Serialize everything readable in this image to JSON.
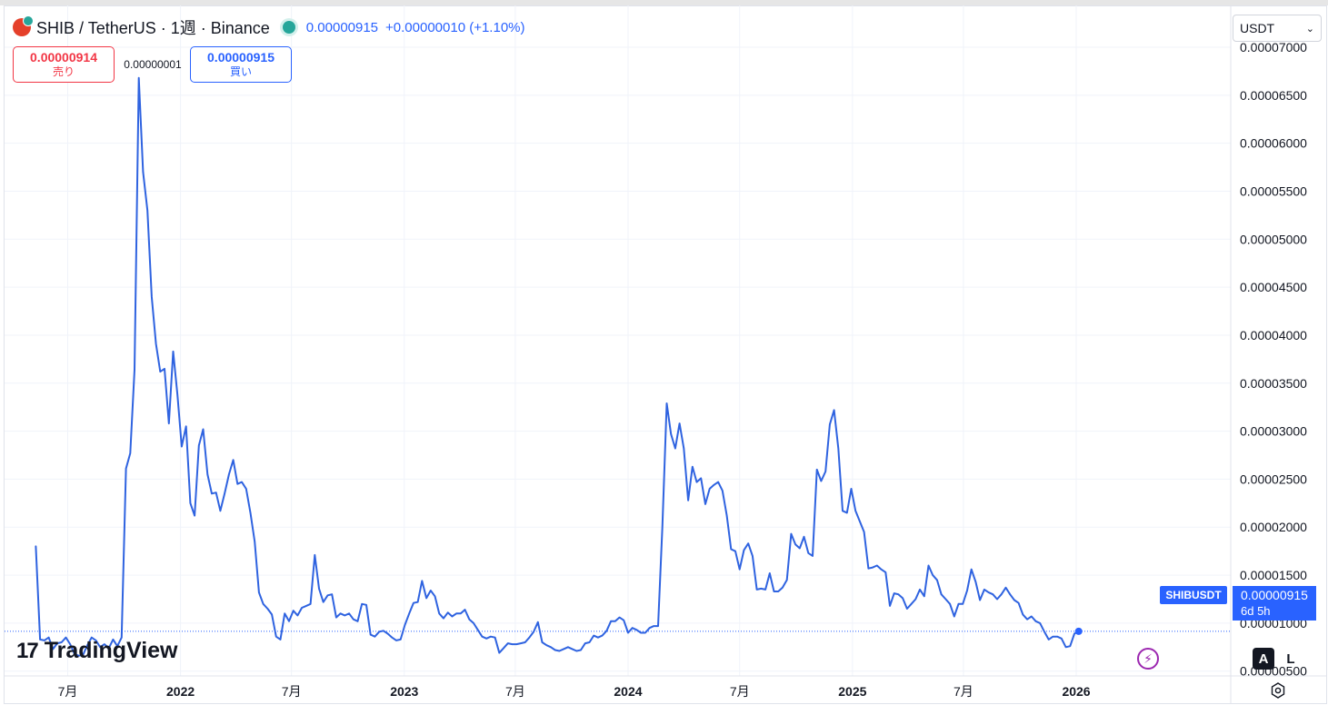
{
  "header": {
    "symbol": "SHIB / TetherUS · 1週 · Binance",
    "last_price": "0.00000915",
    "change": "+0.00000010 (+1.10%)"
  },
  "trade": {
    "sell_price": "0.00000914",
    "sell_label": "売り",
    "spread": "0.00000001",
    "buy_price": "0.00000915",
    "buy_label": "買い"
  },
  "currency_select": {
    "value": "USDT"
  },
  "logo": {
    "mark": "17",
    "text": "TradingView"
  },
  "price_scale_buttons": {
    "auto": "A",
    "log": "L"
  },
  "current_price_tag": {
    "symbol": "SHIBUSDT",
    "price": "0.00000915",
    "countdown": "6d 5h"
  },
  "colors": {
    "line": "#2f63e0",
    "grid": "#f0f3fa",
    "accent": "#2962ff",
    "sell": "#f23645",
    "status": "#26a69a"
  },
  "icons": [
    "coin-icon",
    "status-dot-icon",
    "chevron-down-icon",
    "bolt-icon",
    "settings-icon",
    "tradingview-logo-icon"
  ],
  "chart_data": {
    "type": "line",
    "title": "",
    "xlabel": "",
    "ylabel": "",
    "y_tick_labels": [
      "0.00007000",
      "0.00006500",
      "0.00006000",
      "0.00005500",
      "0.00005000",
      "0.00004500",
      "0.00004000",
      "0.00003500",
      "0.00003000",
      "0.00002500",
      "0.00002000",
      "0.00001500",
      "0.00001000",
      "0.00000500"
    ],
    "y_ticks": [
      7e-05,
      6.5e-05,
      6e-05,
      5.5e-05,
      5e-05,
      4.5e-05,
      4e-05,
      3.5e-05,
      3e-05,
      2.5e-05,
      2e-05,
      1.5e-05,
      1e-05,
      5e-06
    ],
    "ylim": [
      4.5e-06,
      7e-05
    ],
    "x_tick_labels": [
      "7月",
      "2022",
      "7月",
      "2023",
      "7月",
      "2024",
      "7月",
      "2025",
      "7月",
      "2026"
    ],
    "x_ticks": [
      "2021-07-01",
      "2022-01-01",
      "2022-07-01",
      "2023-01-01",
      "2023-07-01",
      "2024-01-01",
      "2024-07-01",
      "2025-01-01",
      "2025-07-01",
      "2026-01-01"
    ],
    "xlim": [
      "2021-03-20",
      "2026-09-10"
    ],
    "grid": true,
    "last_value": 9.15e-06,
    "series": [
      {
        "values": [
          [
            "2021-05-10",
            1.8e-05
          ],
          [
            "2021-05-17",
            8.3e-06
          ],
          [
            "2021-05-24",
            8.2e-06
          ],
          [
            "2021-05-31",
            8.5e-06
          ],
          [
            "2021-06-07",
            7.3e-06
          ],
          [
            "2021-06-14",
            7.9e-06
          ],
          [
            "2021-06-21",
            8e-06
          ],
          [
            "2021-06-28",
            8.5e-06
          ],
          [
            "2021-07-05",
            7.8e-06
          ],
          [
            "2021-07-12",
            6.8e-06
          ],
          [
            "2021-07-19",
            6.6e-06
          ],
          [
            "2021-07-26",
            6.7e-06
          ],
          [
            "2021-08-02",
            7.7e-06
          ],
          [
            "2021-08-09",
            8.5e-06
          ],
          [
            "2021-08-16",
            8.2e-06
          ],
          [
            "2021-08-23",
            7.5e-06
          ],
          [
            "2021-08-30",
            7.8e-06
          ],
          [
            "2021-09-06",
            7.4e-06
          ],
          [
            "2021-09-13",
            8.3e-06
          ],
          [
            "2021-09-20",
            7.6e-06
          ],
          [
            "2021-09-27",
            8.5e-06
          ],
          [
            "2021-10-04",
            2.61e-05
          ],
          [
            "2021-10-11",
            2.77e-05
          ],
          [
            "2021-10-18",
            3.64e-05
          ],
          [
            "2021-10-25",
            6.68e-05
          ],
          [
            "2021-11-01",
            5.7e-05
          ],
          [
            "2021-11-08",
            5.3e-05
          ],
          [
            "2021-11-15",
            4.4e-05
          ],
          [
            "2021-11-22",
            3.91e-05
          ],
          [
            "2021-11-29",
            3.62e-05
          ],
          [
            "2021-12-06",
            3.65e-05
          ],
          [
            "2021-12-13",
            3.08e-05
          ],
          [
            "2021-12-20",
            3.83e-05
          ],
          [
            "2021-12-27",
            3.38e-05
          ],
          [
            "2022-01-03",
            2.84e-05
          ],
          [
            "2022-01-10",
            3.05e-05
          ],
          [
            "2022-01-17",
            2.25e-05
          ],
          [
            "2022-01-24",
            2.12e-05
          ],
          [
            "2022-01-31",
            2.85e-05
          ],
          [
            "2022-02-07",
            3.02e-05
          ],
          [
            "2022-02-14",
            2.55e-05
          ],
          [
            "2022-02-21",
            2.35e-05
          ],
          [
            "2022-02-28",
            2.36e-05
          ],
          [
            "2022-03-07",
            2.17e-05
          ],
          [
            "2022-03-14",
            2.35e-05
          ],
          [
            "2022-03-21",
            2.55e-05
          ],
          [
            "2022-03-28",
            2.7e-05
          ],
          [
            "2022-04-04",
            2.45e-05
          ],
          [
            "2022-04-11",
            2.47e-05
          ],
          [
            "2022-04-18",
            2.4e-05
          ],
          [
            "2022-04-25",
            2.15e-05
          ],
          [
            "2022-05-02",
            1.85e-05
          ],
          [
            "2022-05-09",
            1.32e-05
          ],
          [
            "2022-05-16",
            1.2e-05
          ],
          [
            "2022-05-23",
            1.15e-05
          ],
          [
            "2022-05-30",
            1.09e-05
          ],
          [
            "2022-06-06",
            8.6e-06
          ],
          [
            "2022-06-13",
            8.3e-06
          ],
          [
            "2022-06-20",
            1.1e-05
          ],
          [
            "2022-06-27",
            1.02e-05
          ],
          [
            "2022-07-04",
            1.13e-05
          ],
          [
            "2022-07-11",
            1.08e-05
          ],
          [
            "2022-07-18",
            1.16e-05
          ],
          [
            "2022-07-25",
            1.18e-05
          ],
          [
            "2022-08-01",
            1.2e-05
          ],
          [
            "2022-08-08",
            1.71e-05
          ],
          [
            "2022-08-15",
            1.36e-05
          ],
          [
            "2022-08-22",
            1.22e-05
          ],
          [
            "2022-08-29",
            1.29e-05
          ],
          [
            "2022-09-05",
            1.3e-05
          ],
          [
            "2022-09-12",
            1.06e-05
          ],
          [
            "2022-09-19",
            1.1e-05
          ],
          [
            "2022-09-26",
            1.08e-05
          ],
          [
            "2022-10-03",
            1.1e-05
          ],
          [
            "2022-10-10",
            1.04e-05
          ],
          [
            "2022-10-17",
            1.02e-05
          ],
          [
            "2022-10-24",
            1.2e-05
          ],
          [
            "2022-10-31",
            1.19e-05
          ],
          [
            "2022-11-07",
            8.8e-06
          ],
          [
            "2022-11-14",
            8.6e-06
          ],
          [
            "2022-11-21",
            9.1e-06
          ],
          [
            "2022-11-28",
            9.2e-06
          ],
          [
            "2022-12-05",
            8.9e-06
          ],
          [
            "2022-12-12",
            8.5e-06
          ],
          [
            "2022-12-19",
            8.2e-06
          ],
          [
            "2022-12-26",
            8.3e-06
          ],
          [
            "2023-01-02",
            9.8e-06
          ],
          [
            "2023-01-09",
            1.1e-05
          ],
          [
            "2023-01-16",
            1.21e-05
          ],
          [
            "2023-01-23",
            1.22e-05
          ],
          [
            "2023-01-30",
            1.44e-05
          ],
          [
            "2023-02-06",
            1.26e-05
          ],
          [
            "2023-02-13",
            1.34e-05
          ],
          [
            "2023-02-20",
            1.28e-05
          ],
          [
            "2023-02-27",
            1.1e-05
          ],
          [
            "2023-03-06",
            1.05e-05
          ],
          [
            "2023-03-13",
            1.11e-05
          ],
          [
            "2023-03-20",
            1.07e-05
          ],
          [
            "2023-03-27",
            1.1e-05
          ],
          [
            "2023-04-03",
            1.1e-05
          ],
          [
            "2023-04-10",
            1.14e-05
          ],
          [
            "2023-04-17",
            1.04e-05
          ],
          [
            "2023-04-24",
            1e-05
          ],
          [
            "2023-05-01",
            9.3e-06
          ],
          [
            "2023-05-08",
            8.6e-06
          ],
          [
            "2023-05-15",
            8.4e-06
          ],
          [
            "2023-05-22",
            8.6e-06
          ],
          [
            "2023-05-29",
            8.5e-06
          ],
          [
            "2023-06-05",
            6.9e-06
          ],
          [
            "2023-06-12",
            7.4e-06
          ],
          [
            "2023-06-19",
            7.9e-06
          ],
          [
            "2023-06-26",
            7.8e-06
          ],
          [
            "2023-07-03",
            7.8e-06
          ],
          [
            "2023-07-10",
            7.9e-06
          ],
          [
            "2023-07-17",
            8e-06
          ],
          [
            "2023-07-24",
            8.5e-06
          ],
          [
            "2023-07-31",
            9.1e-06
          ],
          [
            "2023-08-07",
            1.01e-05
          ],
          [
            "2023-08-14",
            8e-06
          ],
          [
            "2023-08-21",
            7.7e-06
          ],
          [
            "2023-08-28",
            7.5e-06
          ],
          [
            "2023-09-04",
            7.2e-06
          ],
          [
            "2023-09-11",
            7.1e-06
          ],
          [
            "2023-09-18",
            7.3e-06
          ],
          [
            "2023-09-25",
            7.5e-06
          ],
          [
            "2023-10-02",
            7.3e-06
          ],
          [
            "2023-10-09",
            7.1e-06
          ],
          [
            "2023-10-16",
            7.2e-06
          ],
          [
            "2023-10-23",
            7.9e-06
          ],
          [
            "2023-10-30",
            8e-06
          ],
          [
            "2023-11-06",
            8.7e-06
          ],
          [
            "2023-11-13",
            8.5e-06
          ],
          [
            "2023-11-20",
            8.7e-06
          ],
          [
            "2023-11-27",
            9.2e-06
          ],
          [
            "2023-12-04",
            1.02e-05
          ],
          [
            "2023-12-11",
            1.02e-05
          ],
          [
            "2023-12-18",
            1.06e-05
          ],
          [
            "2023-12-25",
            1.03e-05
          ],
          [
            "2024-01-01",
            9e-06
          ],
          [
            "2024-01-08",
            9.5e-06
          ],
          [
            "2024-01-15",
            9.3e-06
          ],
          [
            "2024-01-22",
            9e-06
          ],
          [
            "2024-01-29",
            9e-06
          ],
          [
            "2024-02-05",
            9.5e-06
          ],
          [
            "2024-02-12",
            9.7e-06
          ],
          [
            "2024-02-19",
            9.7e-06
          ],
          [
            "2024-02-26",
            2e-05
          ],
          [
            "2024-03-04",
            3.29e-05
          ],
          [
            "2024-03-11",
            2.97e-05
          ],
          [
            "2024-03-18",
            2.82e-05
          ],
          [
            "2024-03-25",
            3.08e-05
          ],
          [
            "2024-04-01",
            2.82e-05
          ],
          [
            "2024-04-08",
            2.28e-05
          ],
          [
            "2024-04-15",
            2.63e-05
          ],
          [
            "2024-04-22",
            2.47e-05
          ],
          [
            "2024-04-29",
            2.51e-05
          ],
          [
            "2024-05-06",
            2.24e-05
          ],
          [
            "2024-05-13",
            2.4e-05
          ],
          [
            "2024-05-20",
            2.44e-05
          ],
          [
            "2024-05-27",
            2.47e-05
          ],
          [
            "2024-06-03",
            2.38e-05
          ],
          [
            "2024-06-10",
            2.12e-05
          ],
          [
            "2024-06-17",
            1.77e-05
          ],
          [
            "2024-06-24",
            1.75e-05
          ],
          [
            "2024-07-01",
            1.56e-05
          ],
          [
            "2024-07-08",
            1.76e-05
          ],
          [
            "2024-07-15",
            1.83e-05
          ],
          [
            "2024-07-22",
            1.7e-05
          ],
          [
            "2024-07-29",
            1.35e-05
          ],
          [
            "2024-08-05",
            1.36e-05
          ],
          [
            "2024-08-12",
            1.35e-05
          ],
          [
            "2024-08-19",
            1.52e-05
          ],
          [
            "2024-08-26",
            1.33e-05
          ],
          [
            "2024-09-02",
            1.33e-05
          ],
          [
            "2024-09-09",
            1.37e-05
          ],
          [
            "2024-09-16",
            1.45e-05
          ],
          [
            "2024-09-23",
            1.93e-05
          ],
          [
            "2024-09-30",
            1.82e-05
          ],
          [
            "2024-10-07",
            1.78e-05
          ],
          [
            "2024-10-14",
            1.9e-05
          ],
          [
            "2024-10-21",
            1.73e-05
          ],
          [
            "2024-10-28",
            1.7e-05
          ],
          [
            "2024-11-04",
            2.6e-05
          ],
          [
            "2024-11-11",
            2.48e-05
          ],
          [
            "2024-11-18",
            2.58e-05
          ],
          [
            "2024-11-25",
            3.07e-05
          ],
          [
            "2024-12-02",
            3.22e-05
          ],
          [
            "2024-12-09",
            2.82e-05
          ],
          [
            "2024-12-16",
            2.17e-05
          ],
          [
            "2024-12-23",
            2.15e-05
          ],
          [
            "2024-12-30",
            2.4e-05
          ],
          [
            "2025-01-06",
            2.17e-05
          ],
          [
            "2025-01-13",
            2.06e-05
          ],
          [
            "2025-01-20",
            1.95e-05
          ],
          [
            "2025-01-27",
            1.57e-05
          ],
          [
            "2025-02-03",
            1.58e-05
          ],
          [
            "2025-02-10",
            1.6e-05
          ],
          [
            "2025-02-17",
            1.56e-05
          ],
          [
            "2025-02-24",
            1.53e-05
          ],
          [
            "2025-03-03",
            1.18e-05
          ],
          [
            "2025-03-10",
            1.31e-05
          ],
          [
            "2025-03-17",
            1.3e-05
          ],
          [
            "2025-03-24",
            1.26e-05
          ],
          [
            "2025-03-31",
            1.15e-05
          ],
          [
            "2025-04-07",
            1.2e-05
          ],
          [
            "2025-04-14",
            1.25e-05
          ],
          [
            "2025-04-21",
            1.35e-05
          ],
          [
            "2025-04-28",
            1.28e-05
          ],
          [
            "2025-05-05",
            1.6e-05
          ],
          [
            "2025-05-12",
            1.5e-05
          ],
          [
            "2025-05-19",
            1.45e-05
          ],
          [
            "2025-05-26",
            1.3e-05
          ],
          [
            "2025-06-02",
            1.25e-05
          ],
          [
            "2025-06-09",
            1.2e-05
          ],
          [
            "2025-06-16",
            1.07e-05
          ],
          [
            "2025-06-23",
            1.2e-05
          ],
          [
            "2025-06-30",
            1.2e-05
          ],
          [
            "2025-07-07",
            1.34e-05
          ],
          [
            "2025-07-14",
            1.56e-05
          ],
          [
            "2025-07-21",
            1.43e-05
          ],
          [
            "2025-07-28",
            1.24e-05
          ],
          [
            "2025-08-04",
            1.35e-05
          ],
          [
            "2025-08-11",
            1.32e-05
          ],
          [
            "2025-08-18",
            1.3e-05
          ],
          [
            "2025-08-25",
            1.25e-05
          ],
          [
            "2025-09-01",
            1.3e-05
          ],
          [
            "2025-09-08",
            1.37e-05
          ],
          [
            "2025-09-15",
            1.3e-05
          ],
          [
            "2025-09-22",
            1.24e-05
          ],
          [
            "2025-09-29",
            1.21e-05
          ],
          [
            "2025-10-06",
            1.09e-05
          ],
          [
            "2025-10-13",
            1.04e-05
          ],
          [
            "2025-10-20",
            1.07e-05
          ],
          [
            "2025-10-27",
            1.02e-05
          ],
          [
            "2025-11-03",
            1e-05
          ],
          [
            "2025-11-10",
            9.1e-06
          ],
          [
            "2025-11-17",
            8.3e-06
          ],
          [
            "2025-11-24",
            8.6e-06
          ],
          [
            "2025-12-01",
            8.6e-06
          ],
          [
            "2025-12-08",
            8.4e-06
          ],
          [
            "2025-12-15",
            7.5e-06
          ],
          [
            "2025-12-22",
            7.6e-06
          ],
          [
            "2025-12-29",
            8.9e-06
          ],
          [
            "2026-01-05",
            9.15e-06
          ]
        ]
      }
    ]
  }
}
